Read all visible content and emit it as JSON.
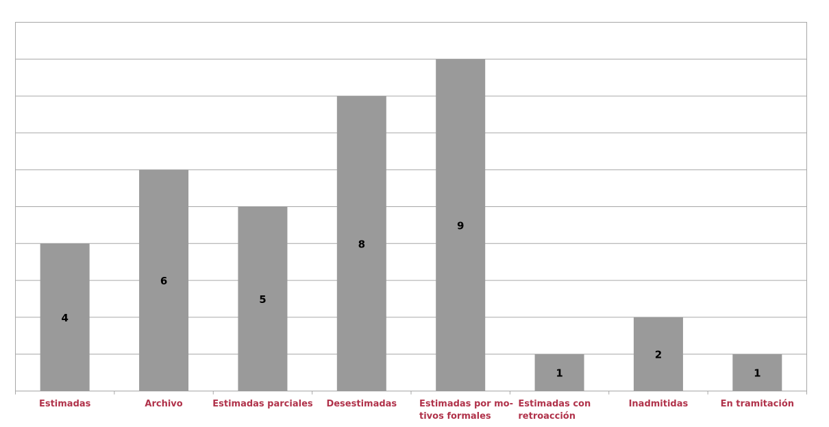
{
  "chart_data": {
    "type": "bar",
    "categories": [
      [
        "Estimadas"
      ],
      [
        "Archivo"
      ],
      [
        "Estimadas parciales"
      ],
      [
        "Desestimadas"
      ],
      [
        "Estimadas por mo-",
        "tivos formales"
      ],
      [
        "Estimadas      con",
        "retroacción"
      ],
      [
        "Inadmitidas"
      ],
      [
        "En tramitación"
      ]
    ],
    "values": [
      4,
      6,
      5,
      8,
      9,
      1,
      2,
      1
    ],
    "title": "",
    "xlabel": "",
    "ylabel": "",
    "ylim": [
      0,
      10
    ],
    "grid": true,
    "legend": "none",
    "bar_color": "#9a9a9a",
    "grid_color": "#a6a6a6",
    "label_color": "#b0324a",
    "value_label_color": "#000000"
  }
}
